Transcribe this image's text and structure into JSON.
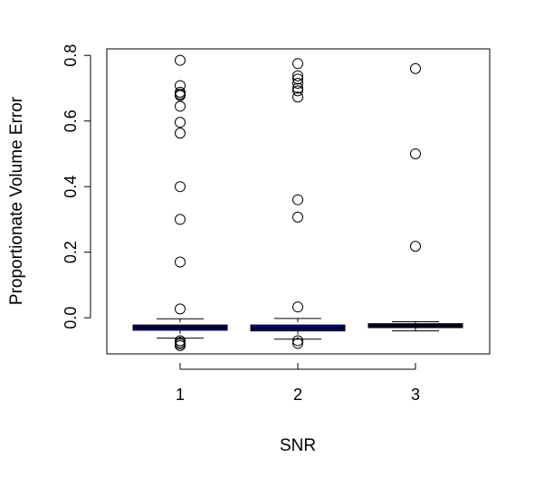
{
  "chart_data": {
    "type": "boxplot",
    "title": "",
    "xlabel": "SNR",
    "ylabel": "Proportionate Volume Error",
    "categories": [
      "1",
      "2",
      "3"
    ],
    "ylim": [
      -0.11,
      0.82
    ],
    "yticks": [
      "0.0",
      "0.2",
      "0.4",
      "0.6",
      "0.8"
    ],
    "grid": false,
    "box_fill": "#0000cc",
    "boxes": [
      {
        "category": "1",
        "whisker_low": -0.062,
        "q1": -0.038,
        "median": -0.03,
        "q3": -0.022,
        "whisker_high": -0.003,
        "outliers": [
          0.785,
          0.708,
          0.688,
          0.682,
          0.678,
          0.645,
          0.596,
          0.563,
          0.4,
          0.3,
          0.17,
          0.027,
          -0.07,
          -0.075,
          -0.08,
          -0.085
        ]
      },
      {
        "category": "2",
        "whisker_low": -0.065,
        "q1": -0.04,
        "median": -0.032,
        "q3": -0.022,
        "whisker_high": -0.002,
        "outliers": [
          0.775,
          0.738,
          0.728,
          0.715,
          0.7,
          0.692,
          0.673,
          0.36,
          0.307,
          0.033,
          -0.07,
          -0.078
        ]
      },
      {
        "category": "3",
        "whisker_low": -0.04,
        "q1": -0.03,
        "median": -0.024,
        "q3": -0.018,
        "whisker_high": -0.012,
        "outliers": [
          0.76,
          0.5,
          0.218
        ]
      }
    ]
  }
}
